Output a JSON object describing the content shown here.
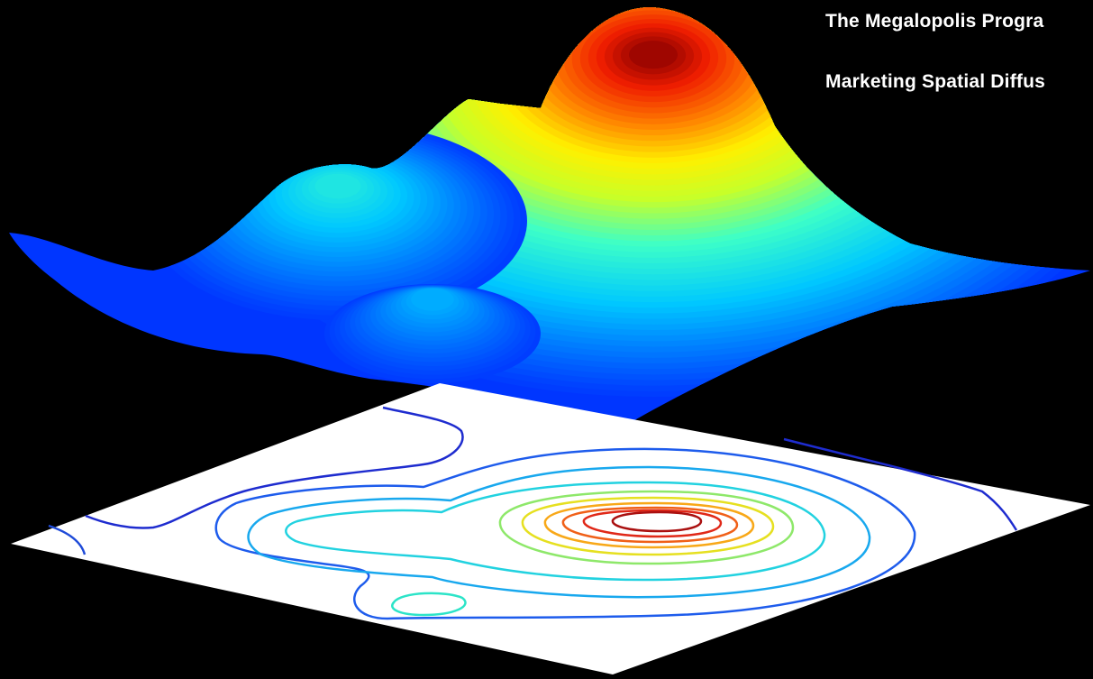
{
  "chart_data": {
    "type": "surface-with-contour",
    "title_lines": [
      "The Megalopolis Progra",
      "Marketing Spatial Diffus"
    ],
    "xlabel": "",
    "ylabel": "",
    "colormap": "jet",
    "background_color": "#000000",
    "contour_plane_color": "#ffffff",
    "grid": false,
    "axes_visible": false,
    "colorbar": false,
    "contour_levels": 8,
    "surface_peaks": [
      {
        "location": "center-right",
        "relative_height": 1.0
      },
      {
        "location": "left-back",
        "relative_height": 0.45
      },
      {
        "location": "center-front",
        "relative_height": 0.3
      }
    ]
  }
}
